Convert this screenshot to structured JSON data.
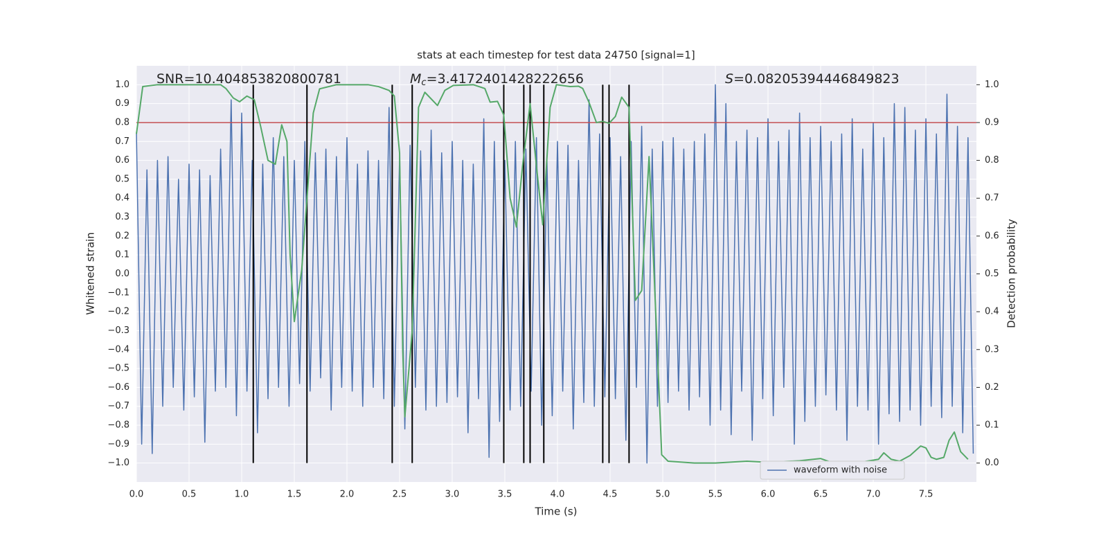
{
  "chart_data": {
    "type": "line",
    "title": "stats at each timestep for test data 24750 [signal=1]",
    "xlabel": "Time (s)",
    "ylabel": "Whitened strain",
    "y2label": "Detection probability",
    "xlim": [
      0,
      7.98
    ],
    "ylim": [
      -1.1,
      1.1
    ],
    "y2lim": [
      -0.05,
      1.05
    ],
    "grid": true,
    "legend": "lower right",
    "background": "#eaeaf2",
    "xticks": [
      {
        "value": 0,
        "label": "0.0"
      },
      {
        "value": 0.5,
        "label": "0.5"
      },
      {
        "value": 1,
        "label": "1.0"
      },
      {
        "value": 1.5,
        "label": "1.5"
      },
      {
        "value": 2,
        "label": "2.0"
      },
      {
        "value": 2.5,
        "label": "2.5"
      },
      {
        "value": 3,
        "label": "3.0"
      },
      {
        "value": 3.5,
        "label": "3.5"
      },
      {
        "value": 4,
        "label": "4.0"
      },
      {
        "value": 4.5,
        "label": "4.5"
      },
      {
        "value": 5,
        "label": "5.0"
      },
      {
        "value": 5.5,
        "label": "5.5"
      },
      {
        "value": 6,
        "label": "6.0"
      },
      {
        "value": 6.5,
        "label": "6.5"
      },
      {
        "value": 7,
        "label": "7.0"
      },
      {
        "value": 7.5,
        "label": "7.5"
      }
    ],
    "yticks": [
      {
        "value": -1,
        "label": "−1.0"
      },
      {
        "value": -0.9,
        "label": "−0.9"
      },
      {
        "value": -0.8,
        "label": "−0.8"
      },
      {
        "value": -0.7,
        "label": "−0.7"
      },
      {
        "value": -0.6,
        "label": "−0.6"
      },
      {
        "value": -0.5,
        "label": "−0.5"
      },
      {
        "value": -0.4,
        "label": "−0.4"
      },
      {
        "value": -0.3,
        "label": "−0.3"
      },
      {
        "value": -0.2,
        "label": "−0.2"
      },
      {
        "value": -0.1,
        "label": "−0.1"
      },
      {
        "value": 0,
        "label": "0.0"
      },
      {
        "value": 0.1,
        "label": "0.1"
      },
      {
        "value": 0.2,
        "label": "0.2"
      },
      {
        "value": 0.3,
        "label": "0.3"
      },
      {
        "value": 0.4,
        "label": "0.4"
      },
      {
        "value": 0.5,
        "label": "0.5"
      },
      {
        "value": 0.6,
        "label": "0.6"
      },
      {
        "value": 0.7,
        "label": "0.7"
      },
      {
        "value": 0.8,
        "label": "0.8"
      },
      {
        "value": 0.9,
        "label": "0.9"
      },
      {
        "value": 1,
        "label": "1.0"
      }
    ],
    "y2ticks": [
      {
        "value": 0,
        "label": "0.0"
      },
      {
        "value": 0.1,
        "label": "0.1"
      },
      {
        "value": 0.2,
        "label": "0.2"
      },
      {
        "value": 0.3,
        "label": "0.3"
      },
      {
        "value": 0.4,
        "label": "0.4"
      },
      {
        "value": 0.5,
        "label": "0.5"
      },
      {
        "value": 0.6,
        "label": "0.6"
      },
      {
        "value": 0.7,
        "label": "0.7"
      },
      {
        "value": 0.8,
        "label": "0.8"
      },
      {
        "value": 0.9,
        "label": "0.9"
      },
      {
        "value": 1,
        "label": "1.0"
      }
    ],
    "series": [
      {
        "name": "waveform with noise",
        "color": "#4c72b0",
        "x": [
          0,
          0.05,
          0.1,
          0.15,
          0.2,
          0.25,
          0.3,
          0.35,
          0.4,
          0.45,
          0.5,
          0.55,
          0.6,
          0.65,
          0.7,
          0.75,
          0.8,
          0.85,
          0.9,
          0.95,
          1,
          1.05,
          1.1,
          1.15,
          1.2,
          1.25,
          1.3,
          1.35,
          1.4,
          1.45,
          1.5,
          1.55,
          1.6,
          1.65,
          1.7,
          1.75,
          1.8,
          1.85,
          1.9,
          1.95,
          2,
          2.05,
          2.1,
          2.15,
          2.2,
          2.25,
          2.3,
          2.35,
          2.4,
          2.45,
          2.5,
          2.55,
          2.6,
          2.65,
          2.7,
          2.75,
          2.8,
          2.85,
          2.9,
          2.95,
          3,
          3.05,
          3.1,
          3.15,
          3.2,
          3.25,
          3.3,
          3.35,
          3.4,
          3.45,
          3.5,
          3.55,
          3.6,
          3.65,
          3.7,
          3.75,
          3.8,
          3.85,
          3.9,
          3.95,
          4,
          4.05,
          4.1,
          4.15,
          4.2,
          4.25,
          4.3,
          4.35,
          4.4,
          4.45,
          4.5,
          4.55,
          4.6,
          4.65,
          4.7,
          4.75,
          4.8,
          4.85,
          4.9,
          4.95,
          5,
          5.05,
          5.1,
          5.15,
          5.2,
          5.25,
          5.3,
          5.35,
          5.4,
          5.45,
          5.5,
          5.55,
          5.6,
          5.65,
          5.7,
          5.75,
          5.8,
          5.85,
          5.9,
          5.95,
          6,
          6.05,
          6.1,
          6.15,
          6.2,
          6.25,
          6.3,
          6.35,
          6.4,
          6.45,
          6.5,
          6.55,
          6.6,
          6.65,
          6.7,
          6.75,
          6.8,
          6.85,
          6.9,
          6.95,
          7,
          7.05,
          7.1,
          7.15,
          7.2,
          7.25,
          7.3,
          7.35,
          7.4,
          7.45,
          7.5,
          7.55,
          7.6,
          7.65,
          7.7,
          7.75,
          7.8,
          7.85,
          7.9,
          7.95
        ],
        "values": [
          0.75,
          -0.9,
          0.55,
          -0.95,
          0.6,
          -0.7,
          0.62,
          -0.6,
          0.5,
          -0.72,
          0.58,
          -0.65,
          0.55,
          -0.89,
          0.52,
          -0.62,
          0.66,
          -0.6,
          0.92,
          -0.75,
          0.85,
          -0.62,
          0.6,
          -0.84,
          0.58,
          -0.66,
          0.72,
          -0.6,
          0.62,
          -0.7,
          0.6,
          -0.58,
          0.7,
          -0.62,
          0.64,
          -0.55,
          0.66,
          -0.72,
          0.62,
          -0.6,
          0.72,
          -0.62,
          0.58,
          -0.7,
          0.65,
          -0.6,
          0.6,
          -0.66,
          0.88,
          -0.7,
          0.62,
          -0.82,
          0.68,
          -0.6,
          0.65,
          -0.72,
          0.76,
          -0.7,
          0.64,
          -0.68,
          0.7,
          -0.65,
          0.6,
          -0.84,
          0.58,
          -0.66,
          0.82,
          -0.97,
          0.7,
          -0.78,
          0.6,
          -0.72,
          0.7,
          -0.7,
          0.66,
          -0.62,
          0.72,
          -0.8,
          0.6,
          -0.75,
          0.7,
          -0.62,
          0.68,
          -0.82,
          0.6,
          -0.68,
          0.92,
          -0.7,
          0.74,
          -0.65,
          0.72,
          -0.66,
          0.62,
          -0.88,
          0.7,
          -0.6,
          0.78,
          -1.0,
          0.66,
          -0.7,
          0.7,
          -0.68,
          0.72,
          -0.62,
          0.66,
          -0.72,
          0.7,
          -0.65,
          0.74,
          -0.8,
          1.0,
          -0.72,
          0.9,
          -0.85,
          0.7,
          -0.62,
          0.76,
          -0.88,
          0.72,
          -0.66,
          0.82,
          -0.75,
          0.7,
          -0.6,
          0.76,
          -0.9,
          0.85,
          -0.78,
          0.72,
          -0.7,
          0.78,
          -0.64,
          0.7,
          -0.72,
          0.74,
          -0.88,
          0.82,
          -0.7,
          0.66,
          -0.72,
          0.8,
          -0.9,
          0.72,
          -0.74,
          0.9,
          -0.78,
          0.88,
          -0.72,
          0.76,
          -0.8,
          0.82,
          -0.7,
          0.74,
          -0.76,
          0.95,
          -0.7,
          0.78,
          -0.84,
          0.72,
          -0.95
        ]
      },
      {
        "color": "#55a868",
        "axis": "y2",
        "x": [
          0,
          0.06,
          0.2,
          0.5,
          0.8,
          0.85,
          0.92,
          0.98,
          1.05,
          1.12,
          1.18,
          1.25,
          1.32,
          1.38,
          1.43,
          1.46,
          1.5,
          1.57,
          1.68,
          1.74,
          1.9,
          2.2,
          2.3,
          2.4,
          2.45,
          2.5,
          2.53,
          2.55,
          2.62,
          2.68,
          2.74,
          2.86,
          2.93,
          3.01,
          3.2,
          3.31,
          3.36,
          3.43,
          3.49,
          3.55,
          3.61,
          3.67,
          3.74,
          3.8,
          3.86,
          3.93,
          3.99,
          4.12,
          4.2,
          4.24,
          4.3,
          4.37,
          4.43,
          4.49,
          4.55,
          4.61,
          4.68,
          4.74,
          4.8,
          4.87,
          4.93,
          4.99,
          5.05,
          5.3,
          5.5,
          5.8,
          6,
          6.3,
          6.5,
          6.6,
          6.9,
          7.05,
          7.1,
          7.17,
          7.25,
          7.35,
          7.45,
          7.5,
          7.55,
          7.6,
          7.67,
          7.72,
          7.77,
          7.83,
          7.9
        ],
        "values": [
          0.87,
          0.995,
          1.0,
          1.0,
          1.0,
          0.99,
          0.965,
          0.955,
          0.97,
          0.96,
          0.89,
          0.8,
          0.79,
          0.894,
          0.85,
          0.55,
          0.374,
          0.51,
          0.925,
          0.989,
          1.0,
          1.0,
          0.995,
          0.985,
          0.97,
          0.82,
          0.3,
          0.122,
          0.35,
          0.94,
          0.98,
          0.945,
          0.985,
          0.998,
          1.0,
          0.99,
          0.954,
          0.956,
          0.92,
          0.7,
          0.624,
          0.79,
          0.95,
          0.785,
          0.63,
          0.94,
          1.0,
          0.995,
          0.996,
          0.99,
          0.953,
          0.9,
          0.903,
          0.898,
          0.916,
          0.967,
          0.94,
          0.43,
          0.456,
          0.81,
          0.42,
          0.022,
          0.005,
          0.0,
          0.0,
          0.005,
          0.002,
          0.006,
          0.012,
          0.002,
          0.003,
          0.01,
          0.027,
          0.01,
          0.005,
          0.02,
          0.045,
          0.04,
          0.015,
          0.01,
          0.015,
          0.06,
          0.082,
          0.03,
          0.01
        ]
      }
    ],
    "hlines": [
      {
        "y": 0.8,
        "color": "#c44e52"
      }
    ],
    "vlines": {
      "x": [
        1.11,
        1.62,
        2.43,
        2.62,
        3.49,
        3.68,
        3.74,
        3.87,
        4.43,
        4.49,
        4.68
      ],
      "ymin": -1,
      "ymax": 1,
      "color": "#000000"
    },
    "annotations": [
      {
        "text": "SNR=10.404853820800781"
      },
      {
        "symbol": "M",
        "subscript": "c",
        "text": "=3.4172401428222656"
      },
      {
        "symbol": "S",
        "text": "=0.08205394446849823"
      }
    ]
  }
}
